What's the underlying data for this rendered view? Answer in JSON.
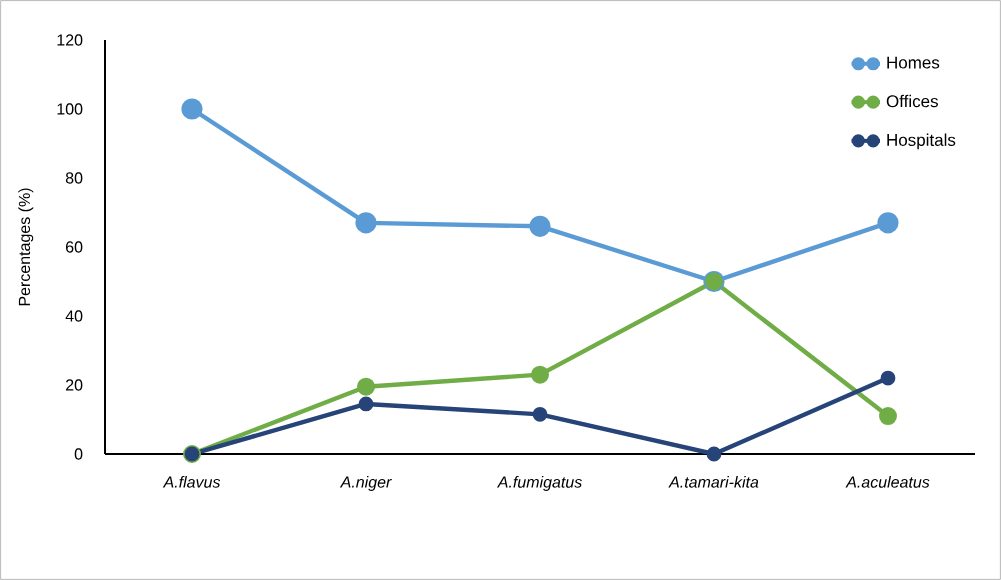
{
  "chart_data": {
    "type": "line",
    "ylabel": "Percentages (%)",
    "categories": [
      "A.flavus",
      "A.niger",
      "A.fumigatus",
      "A.tamari-kita",
      "A.aculeatus"
    ],
    "series": [
      {
        "name": "Homes",
        "color": "#5b9bd5",
        "values": [
          100,
          67,
          66,
          50,
          67
        ]
      },
      {
        "name": "Offices",
        "color": "#70ad47",
        "values": [
          0,
          19.5,
          23,
          50,
          11
        ]
      },
      {
        "name": "Hospitals",
        "color": "#264478",
        "values": [
          0,
          14.5,
          11.5,
          0,
          22
        ]
      }
    ],
    "ylim": [
      0,
      120
    ],
    "yticks": [
      0,
      20,
      40,
      60,
      80,
      100,
      120
    ],
    "grid": false,
    "legend": "top right",
    "marker": "circle",
    "line_style": "solid"
  }
}
